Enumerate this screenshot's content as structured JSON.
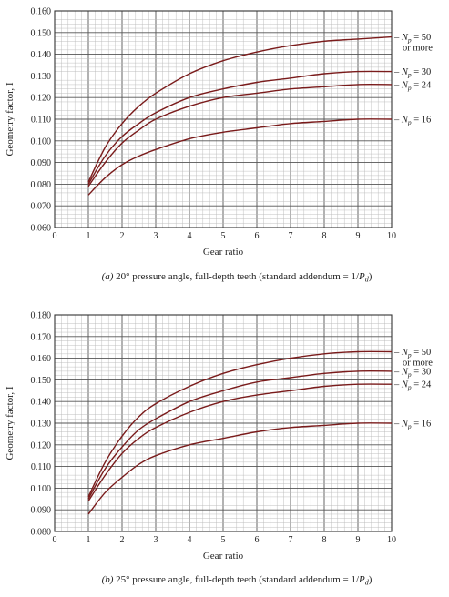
{
  "chart_data": [
    {
      "type": "line",
      "panel": "a",
      "caption_prefix": "(a)",
      "caption": "20° pressure angle, full-depth teeth (standard addendum = 1/",
      "caption_sym": "P",
      "caption_sub": "d",
      "caption_close": ")",
      "xlabel": "Gear ratio",
      "ylabel": "Geometry factor, I",
      "xlim": [
        0,
        10
      ],
      "ylim": [
        0.06,
        0.16
      ],
      "x_ticks": [
        "0",
        "1",
        "2",
        "3",
        "4",
        "5",
        "6",
        "7",
        "8",
        "9",
        "10"
      ],
      "y_ticks": [
        "0.060",
        "0.070",
        "0.080",
        "0.090",
        "0.100",
        "0.110",
        "0.120",
        "0.130",
        "0.140",
        "0.150",
        "0.160"
      ],
      "grid": true,
      "line_color": "#7a1b1b",
      "series": [
        {
          "label_sym": "N",
          "label_sub": "p",
          "label_value": "= 50",
          "label_extra": "or more",
          "x": [
            1,
            1.5,
            2,
            2.5,
            3,
            4,
            5,
            6,
            7,
            8,
            9,
            10
          ],
          "y": [
            0.081,
            0.097,
            0.108,
            0.116,
            0.122,
            0.131,
            0.137,
            0.141,
            0.144,
            0.146,
            0.147,
            0.148
          ]
        },
        {
          "label_sym": "N",
          "label_sub": "p",
          "label_value": "= 30",
          "label_extra": "",
          "x": [
            1,
            1.5,
            2,
            2.5,
            3,
            4,
            5,
            6,
            7,
            8,
            9,
            10
          ],
          "y": [
            0.08,
            0.093,
            0.102,
            0.108,
            0.113,
            0.12,
            0.124,
            0.127,
            0.129,
            0.131,
            0.132,
            0.132
          ]
        },
        {
          "label_sym": "N",
          "label_sub": "p",
          "label_value": "= 24",
          "label_extra": "",
          "x": [
            1,
            1.5,
            2,
            2.5,
            3,
            4,
            5,
            6,
            7,
            8,
            9,
            10
          ],
          "y": [
            0.079,
            0.09,
            0.099,
            0.105,
            0.11,
            0.116,
            0.12,
            0.122,
            0.124,
            0.125,
            0.126,
            0.126
          ]
        },
        {
          "label_sym": "N",
          "label_sub": "p",
          "label_value": "= 16",
          "label_extra": "",
          "x": [
            1,
            1.5,
            2,
            2.5,
            3,
            4,
            5,
            6,
            7,
            8,
            9,
            10
          ],
          "y": [
            0.075,
            0.083,
            0.089,
            0.093,
            0.096,
            0.101,
            0.104,
            0.106,
            0.108,
            0.109,
            0.11,
            0.11
          ]
        }
      ]
    },
    {
      "type": "line",
      "panel": "b",
      "caption_prefix": "(b)",
      "caption": "25° pressure angle, full-depth teeth (standard addendum = 1/",
      "caption_sym": "P",
      "caption_sub": "d",
      "caption_close": ")",
      "xlabel": "Gear ratio",
      "ylabel": "Geometry factor, I",
      "xlim": [
        0,
        10
      ],
      "ylim": [
        0.08,
        0.18
      ],
      "x_ticks": [
        "0",
        "1",
        "2",
        "3",
        "4",
        "5",
        "6",
        "7",
        "8",
        "9",
        "10"
      ],
      "y_ticks": [
        "0.080",
        "0.090",
        "0.100",
        "0.110",
        "0.120",
        "0.130",
        "0.140",
        "0.150",
        "0.160",
        "0.170",
        "0.180"
      ],
      "grid": true,
      "line_color": "#7a1b1b",
      "series": [
        {
          "label_sym": "N",
          "label_sub": "p",
          "label_value": "= 50",
          "label_extra": "or more",
          "x": [
            1,
            1.5,
            2,
            2.5,
            3,
            4,
            5,
            6,
            7,
            8,
            9,
            10
          ],
          "y": [
            0.096,
            0.112,
            0.124,
            0.133,
            0.139,
            0.147,
            0.153,
            0.157,
            0.16,
            0.162,
            0.163,
            0.163
          ]
        },
        {
          "label_sym": "N",
          "label_sub": "p",
          "label_value": "= 30",
          "label_extra": "",
          "x": [
            1,
            1.5,
            2,
            2.5,
            3,
            4,
            5,
            6,
            7,
            8,
            9,
            10
          ],
          "y": [
            0.095,
            0.109,
            0.119,
            0.127,
            0.132,
            0.14,
            0.145,
            0.149,
            0.151,
            0.153,
            0.154,
            0.154
          ]
        },
        {
          "label_sym": "N",
          "label_sub": "p",
          "label_value": "= 24",
          "label_extra": "",
          "x": [
            1,
            1.5,
            2,
            2.5,
            3,
            4,
            5,
            6,
            7,
            8,
            9,
            10
          ],
          "y": [
            0.094,
            0.106,
            0.116,
            0.123,
            0.128,
            0.135,
            0.14,
            0.143,
            0.145,
            0.147,
            0.148,
            0.148
          ]
        },
        {
          "label_sym": "N",
          "label_sub": "p",
          "label_value": "= 16",
          "label_extra": "",
          "x": [
            1,
            1.5,
            2,
            2.5,
            3,
            4,
            5,
            6,
            7,
            8,
            9,
            10
          ],
          "y": [
            0.088,
            0.098,
            0.105,
            0.111,
            0.115,
            0.12,
            0.123,
            0.126,
            0.128,
            0.129,
            0.13,
            0.13
          ]
        }
      ]
    }
  ]
}
